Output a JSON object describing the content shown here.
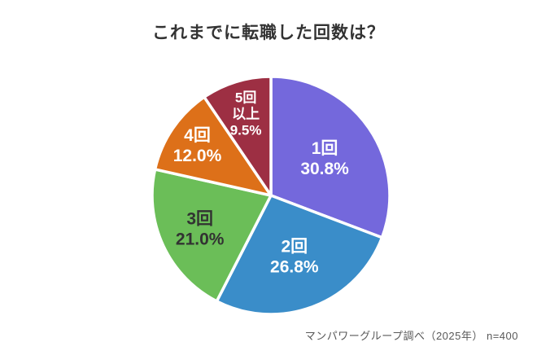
{
  "title": "これまでに転職した回数は？",
  "source_note": "マンパワーグループ調べ（2025年） n=400",
  "chart_data": {
    "type": "pie",
    "title": "これまでに転職した回数は？",
    "source": "マンパワーグループ調べ（2025年） n=400",
    "sample_size": "n=400",
    "legend_position": "none",
    "labels_inside": true,
    "start_angle_deg": 0,
    "direction": "clockwise",
    "stroke_color": "#ffffff",
    "stroke_width": 3.5,
    "categories": [
      "1回",
      "2回",
      "3回",
      "4回",
      "5回以上"
    ],
    "values": [
      30.8,
      26.8,
      21.0,
      12.0,
      9.5
    ],
    "slices": [
      {
        "label": "1回",
        "value": 30.8,
        "display": "30.8%",
        "color": "#7468DC",
        "text_color": "#ffffff",
        "label_lines": [
          "1回",
          "30.8%"
        ],
        "label_radius": 0.55,
        "label_size": 21
      },
      {
        "label": "2回",
        "value": 26.8,
        "display": "26.8%",
        "color": "#3A8DC9",
        "text_color": "#ffffff",
        "label_lines": [
          "2回",
          "26.8%"
        ],
        "label_radius": 0.55,
        "label_size": 21
      },
      {
        "label": "3回",
        "value": 21.0,
        "display": "21.0%",
        "color": "#6BBE58",
        "text_color": "#323232",
        "label_lines": [
          "3回",
          "21.0%"
        ],
        "label_radius": 0.66,
        "label_size": 21
      },
      {
        "label": "4回",
        "value": 12.0,
        "display": "12.0%",
        "color": "#DD7019",
        "text_color": "#ffffff",
        "label_lines": [
          "4回",
          "12.0%"
        ],
        "label_radius": 0.75,
        "label_size": 21
      },
      {
        "label": "5回以上",
        "value": 9.5,
        "display": "9.5%",
        "color": "#9D2F43",
        "text_color": "#ffffff",
        "label_lines": [
          "5回",
          "以上",
          "9.5%"
        ],
        "label_radius": 0.72,
        "label_size": 17
      }
    ]
  }
}
